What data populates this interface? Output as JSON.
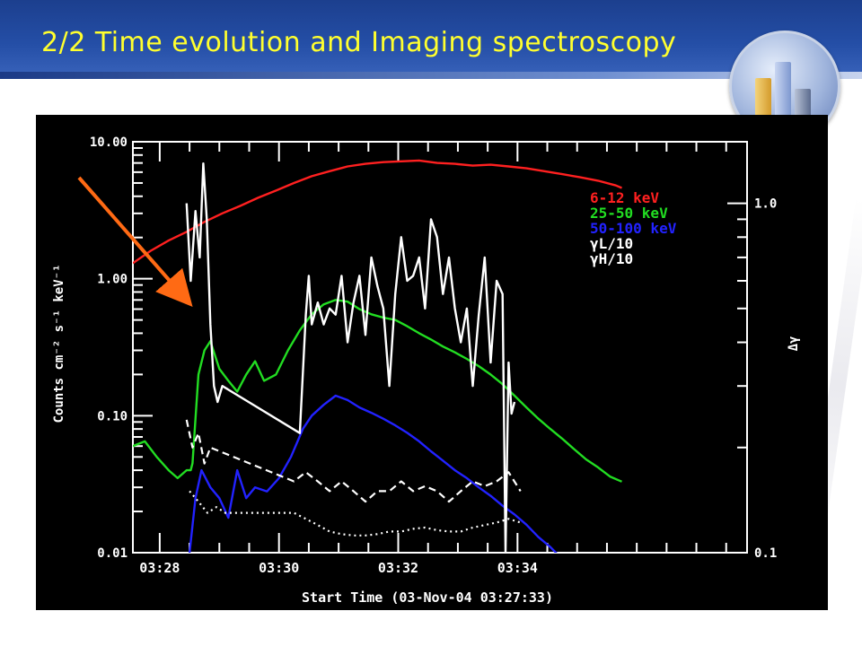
{
  "slide": {
    "title": "2/2  Time evolution and Imaging spectroscopy",
    "logo_icon": "bar-chart-globe-icon",
    "arrow_color": "#ff6a14"
  },
  "chart_data": {
    "type": "line",
    "xlabel": "Start Time (03-Nov-04 03:27:33)",
    "ylabel": "Counts cm⁻² s⁻¹ keV⁻¹",
    "y2label": "Δγ",
    "x_unit": "minutes after 03:27:33",
    "xlim": [
      0,
      10.3
    ],
    "ylim": [
      0.01,
      10
    ],
    "yscale": "log",
    "y2lim": [
      0.1,
      1.5
    ],
    "y2scale": "log",
    "grid": false,
    "legend_position": "top-right",
    "x_ticks": [
      {
        "value": 0.45,
        "label": "03:28"
      },
      {
        "value": 2.45,
        "label": "03:30"
      },
      {
        "value": 4.45,
        "label": "03:32"
      },
      {
        "value": 6.45,
        "label": "03:34"
      }
    ],
    "y_ticks": [
      {
        "value": 10,
        "label": "10.00"
      },
      {
        "value": 1,
        "label": "1.00"
      },
      {
        "value": 0.1,
        "label": "0.10"
      },
      {
        "value": 0.01,
        "label": "0.01"
      }
    ],
    "y2_ticks": [
      {
        "value": 1.0,
        "label": "1.0"
      },
      {
        "value": 0.1,
        "label": "0.1"
      }
    ],
    "legend": [
      {
        "label": "6-12 keV",
        "color": "#ff2020"
      },
      {
        "label": "25-50 keV",
        "color": "#22dd22"
      },
      {
        "label": "50-100 keV",
        "color": "#2222ff"
      },
      {
        "label": "γL/10",
        "color": "#ffffff"
      },
      {
        "label": "γH/10",
        "color": "#ffffff"
      }
    ],
    "series": [
      {
        "name": "6-12 keV",
        "color": "#ff2020",
        "axis": "left",
        "style": "solid",
        "x": [
          0.0,
          0.3,
          0.6,
          0.9,
          1.2,
          1.5,
          1.8,
          2.1,
          2.4,
          2.7,
          3.0,
          3.3,
          3.6,
          3.9,
          4.2,
          4.5,
          4.8,
          5.1,
          5.4,
          5.7,
          6.0,
          6.3,
          6.6,
          6.9,
          7.2,
          7.5,
          7.8,
          8.1,
          8.2
        ],
        "y": [
          1.3,
          1.6,
          1.9,
          2.2,
          2.6,
          3.0,
          3.4,
          3.9,
          4.4,
          5.0,
          5.6,
          6.1,
          6.6,
          6.9,
          7.1,
          7.2,
          7.3,
          7.0,
          6.9,
          6.7,
          6.8,
          6.6,
          6.4,
          6.1,
          5.8,
          5.5,
          5.2,
          4.8,
          4.6
        ]
      },
      {
        "name": "25-50 keV",
        "color": "#22dd22",
        "axis": "left",
        "style": "solid",
        "x": [
          0.0,
          0.2,
          0.4,
          0.6,
          0.75,
          0.9,
          0.97,
          1.0,
          1.1,
          1.2,
          1.3,
          1.45,
          1.6,
          1.75,
          1.9,
          2.05,
          2.2,
          2.4,
          2.6,
          2.8,
          3.0,
          3.2,
          3.4,
          3.6,
          3.8,
          4.0,
          4.2,
          4.4,
          4.6,
          4.8,
          5.0,
          5.2,
          5.4,
          5.6,
          5.8,
          6.0,
          6.2,
          6.4,
          6.6,
          6.8,
          7.0,
          7.2,
          7.4,
          7.6,
          7.8,
          8.0,
          8.2
        ],
        "y": [
          0.06,
          0.065,
          0.05,
          0.04,
          0.035,
          0.04,
          0.04,
          0.045,
          0.2,
          0.3,
          0.35,
          0.22,
          0.18,
          0.15,
          0.2,
          0.25,
          0.18,
          0.2,
          0.3,
          0.42,
          0.55,
          0.65,
          0.7,
          0.68,
          0.6,
          0.55,
          0.52,
          0.5,
          0.45,
          0.4,
          0.36,
          0.32,
          0.29,
          0.26,
          0.23,
          0.2,
          0.17,
          0.14,
          0.115,
          0.095,
          0.08,
          0.068,
          0.057,
          0.048,
          0.042,
          0.036,
          0.033
        ]
      },
      {
        "name": "50-100 keV",
        "color": "#2222ff",
        "axis": "left",
        "style": "solid",
        "x": [
          0.95,
          1.05,
          1.15,
          1.3,
          1.45,
          1.6,
          1.75,
          1.9,
          2.05,
          2.25,
          2.45,
          2.65,
          2.85,
          3.0,
          3.2,
          3.4,
          3.6,
          3.8,
          4.0,
          4.2,
          4.4,
          4.6,
          4.8,
          5.0,
          5.2,
          5.4,
          5.6,
          5.8,
          6.0,
          6.2,
          6.4,
          6.6,
          6.8,
          7.0,
          7.2
        ],
        "y": [
          0.01,
          0.025,
          0.04,
          0.03,
          0.025,
          0.018,
          0.04,
          0.025,
          0.03,
          0.028,
          0.035,
          0.05,
          0.08,
          0.1,
          0.12,
          0.14,
          0.13,
          0.115,
          0.105,
          0.095,
          0.085,
          0.075,
          0.065,
          0.055,
          0.047,
          0.04,
          0.035,
          0.03,
          0.026,
          0.022,
          0.019,
          0.016,
          0.013,
          0.011,
          0.009
        ]
      },
      {
        "name": "γL/10",
        "color": "#ffffff",
        "axis": "right",
        "style": "solid",
        "x": [
          0.9,
          0.97,
          1.05,
          1.12,
          1.18,
          1.24,
          1.3,
          1.36,
          1.42,
          1.5,
          2.8,
          2.9,
          2.95,
          3.0,
          3.1,
          3.2,
          3.3,
          3.4,
          3.5,
          3.6,
          3.7,
          3.8,
          3.9,
          4.0,
          4.1,
          4.2,
          4.3,
          4.4,
          4.5,
          4.6,
          4.7,
          4.8,
          4.9,
          5.0,
          5.1,
          5.2,
          5.3,
          5.4,
          5.5,
          5.6,
          5.7,
          5.8,
          5.9,
          6.0,
          6.1,
          6.2,
          6.25,
          6.3,
          6.35,
          6.4
        ],
        "y": [
          1.0,
          0.6,
          0.95,
          0.7,
          1.3,
          0.9,
          0.45,
          0.3,
          0.27,
          0.3,
          0.22,
          0.48,
          0.62,
          0.45,
          0.52,
          0.45,
          0.5,
          0.48,
          0.62,
          0.4,
          0.52,
          0.62,
          0.42,
          0.7,
          0.58,
          0.5,
          0.3,
          0.55,
          0.8,
          0.6,
          0.62,
          0.7,
          0.5,
          0.9,
          0.8,
          0.55,
          0.7,
          0.5,
          0.4,
          0.5,
          0.3,
          0.48,
          0.7,
          0.35,
          0.6,
          0.55,
          0.1,
          0.35,
          0.25,
          0.27
        ]
      },
      {
        "name": "γH/10",
        "color": "#ffffff",
        "axis": "right",
        "style": "dashed",
        "x": [
          0.9,
          1.0,
          1.1,
          1.2,
          1.3,
          2.7,
          2.9,
          3.1,
          3.3,
          3.5,
          3.7,
          3.9,
          4.1,
          4.3,
          4.5,
          4.7,
          4.9,
          5.1,
          5.3,
          5.5,
          5.7,
          5.9,
          6.1,
          6.3,
          6.5
        ],
        "y": [
          0.24,
          0.2,
          0.22,
          0.18,
          0.2,
          0.16,
          0.17,
          0.16,
          0.15,
          0.16,
          0.15,
          0.14,
          0.15,
          0.15,
          0.16,
          0.15,
          0.155,
          0.15,
          0.14,
          0.15,
          0.16,
          0.155,
          0.16,
          0.17,
          0.15
        ]
      },
      {
        "name": "γL/10 (dotted)",
        "color": "#ffffff",
        "axis": "right",
        "style": "dotted",
        "x": [
          0.95,
          1.1,
          1.25,
          1.4,
          1.55,
          2.7,
          2.9,
          3.1,
          3.3,
          3.5,
          3.7,
          3.9,
          4.1,
          4.3,
          4.5,
          4.7,
          4.9,
          5.1,
          5.3,
          5.5,
          5.7,
          5.9,
          6.1,
          6.3,
          6.5
        ],
        "y": [
          0.15,
          0.14,
          0.13,
          0.135,
          0.13,
          0.13,
          0.125,
          0.12,
          0.115,
          0.113,
          0.112,
          0.112,
          0.113,
          0.115,
          0.115,
          0.117,
          0.118,
          0.116,
          0.115,
          0.115,
          0.118,
          0.12,
          0.122,
          0.125,
          0.122
        ]
      }
    ]
  }
}
